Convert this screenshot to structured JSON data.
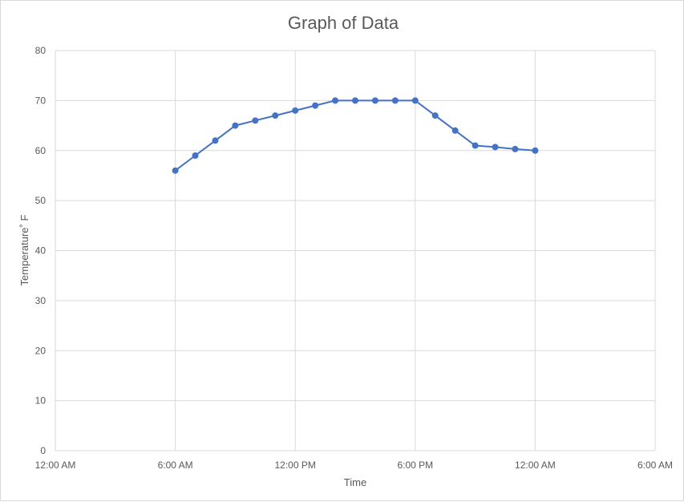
{
  "chart_data": {
    "type": "scatter",
    "title": "Graph of Data",
    "xlabel": "Time",
    "ylabel": "Temperature˚ F",
    "x_unit": "hours",
    "xlim": [
      0,
      30
    ],
    "ylim": [
      0,
      80
    ],
    "y_ticks": [
      0,
      10,
      20,
      30,
      40,
      50,
      60,
      70,
      80
    ],
    "x_ticks": [
      {
        "value": 0,
        "label": "12:00 AM"
      },
      {
        "value": 6,
        "label": "6:00 AM"
      },
      {
        "value": 12,
        "label": "12:00 PM"
      },
      {
        "value": 18,
        "label": "6:00 PM"
      },
      {
        "value": 24,
        "label": "12:00 AM"
      },
      {
        "value": 30,
        "label": "6:00 AM"
      }
    ],
    "grid": true,
    "series": [
      {
        "color": "#4472c4",
        "x": [
          6,
          7,
          8,
          9,
          10,
          11,
          12,
          13,
          14,
          15,
          16,
          17,
          18,
          19,
          20,
          21,
          22,
          23,
          24
        ],
        "y": [
          56,
          59,
          62,
          65,
          66,
          67,
          68,
          69,
          70,
          70,
          70,
          70,
          70,
          67,
          64,
          61,
          60.7,
          60.3,
          60
        ]
      }
    ]
  }
}
